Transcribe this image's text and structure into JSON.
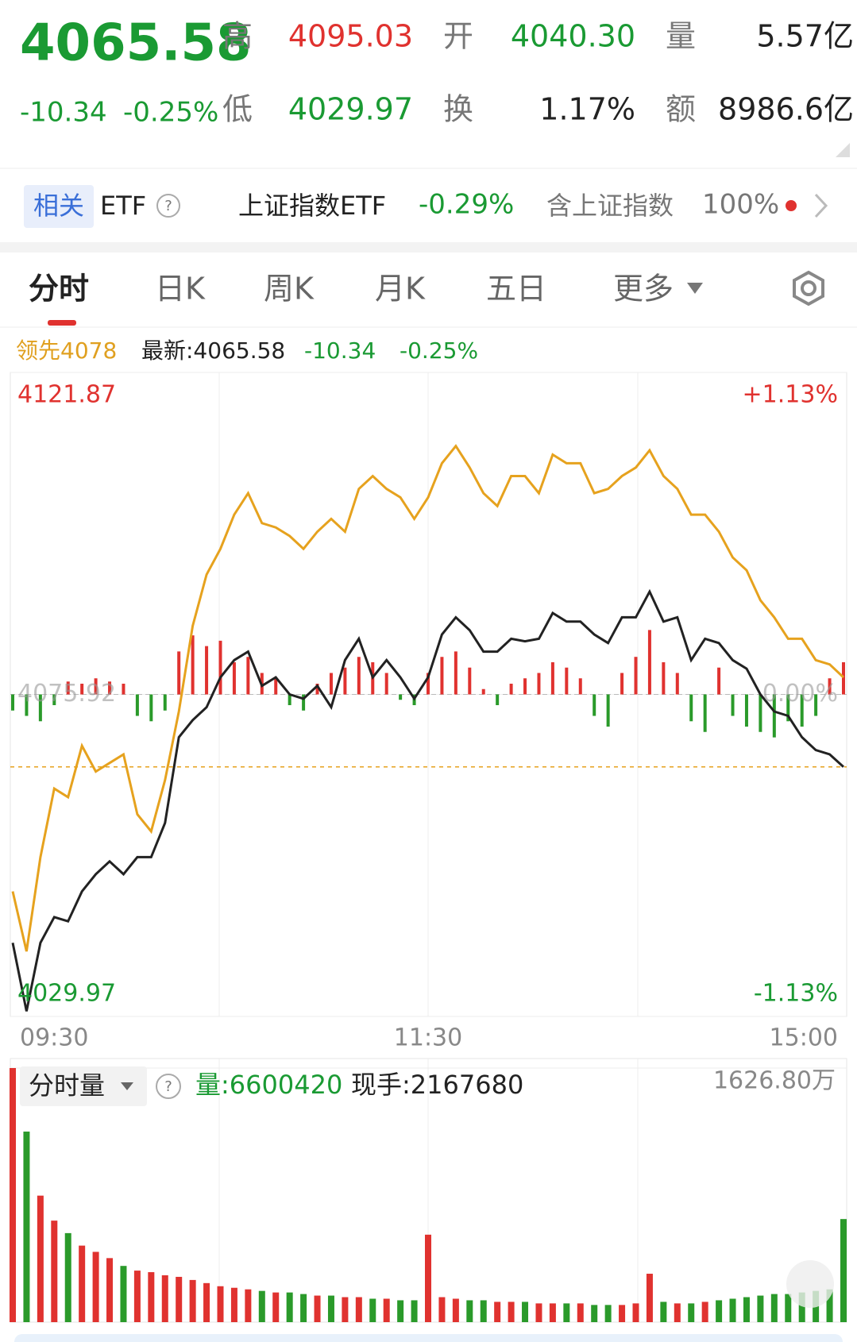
{
  "header": {
    "price": "4065.58",
    "change": "-10.34",
    "change_pct": "-0.25%",
    "stats": [
      {
        "label": "高",
        "value": "4095.03"
      },
      {
        "label": "开",
        "value": "4040.30"
      },
      {
        "label": "量",
        "value": "5.57亿"
      },
      {
        "label": "低",
        "value": "4029.97"
      },
      {
        "label": "换",
        "value": "1.17%"
      },
      {
        "label": "额",
        "value": "8986.6亿"
      }
    ]
  },
  "etf": {
    "tag": "相关",
    "label": "ETF",
    "name": "上证指数ETF",
    "change": "-0.29%",
    "holding_label": "含上证指数",
    "holding": "100%"
  },
  "tabs": [
    "分时",
    "日K",
    "周K",
    "月K",
    "五日",
    "更多"
  ],
  "chart_data": {
    "type": "line",
    "legend": {
      "lead": "领先4078",
      "latest": "最新:4065.58",
      "change": "-10.34",
      "change_pct": "-0.25%"
    },
    "categories": [
      "09:30",
      null,
      null,
      null,
      null,
      null,
      null,
      null,
      null,
      null,
      null,
      null,
      null,
      null,
      null,
      null,
      null,
      null,
      null,
      null,
      null,
      null,
      null,
      null,
      null,
      null,
      null,
      null,
      null,
      null,
      "11:30",
      null,
      null,
      null,
      null,
      null,
      null,
      null,
      null,
      null,
      null,
      null,
      null,
      null,
      null,
      null,
      null,
      null,
      null,
      null,
      null,
      null,
      null,
      null,
      null,
      null,
      null,
      null,
      null,
      null,
      "15:00"
    ],
    "ylim": [
      4029.97,
      4121.87
    ],
    "yticks": [
      4029.97,
      4075.92,
      4121.87
    ],
    "y2lim": [
      -1.13,
      1.13
    ],
    "y2ticks": [
      {
        "value": -1.13,
        "label": "-1.13%"
      },
      {
        "value": 0,
        "label": "0.00%"
      },
      {
        "value": 1.13,
        "label": "+1.13%"
      }
    ],
    "grid": true,
    "up_color": "#e0322f",
    "down_color": "#2a9a2a",
    "series": [
      {
        "color": "#e6a21e",
        "values": [
          4047.81,
          4039.26,
          4052.7,
          4062.48,
          4061.26,
          4068.59,
          4064.92,
          4066.14,
          4067.37,
          4058.81,
          4056.37,
          4063.7,
          4073.48,
          4085.7,
          4093.03,
          4096.69,
          4101.58,
          4104.64,
          4100.36,
          4099.75,
          4098.53,
          4096.69,
          4099.14,
          4100.97,
          4099.14,
          4105.25,
          4107.08,
          4105.25,
          4104.03,
          4100.97,
          4104.03,
          4108.91,
          4111.36,
          4108.3,
          4104.64,
          4102.8,
          4107.08,
          4107.08,
          4104.64,
          4110.14,
          4108.91,
          4108.91,
          4104.64,
          4105.25,
          4107.08,
          4108.3,
          4110.75,
          4107.08,
          4105.25,
          4101.58,
          4101.58,
          4099.14,
          4095.47,
          4093.64,
          4089.36,
          4086.92,
          4083.86,
          4083.86,
          4080.81,
          4080.2,
          4078.36
        ]
      },
      {
        "color": "#222222",
        "values": [
          4040.48,
          4030.71,
          4040.48,
          4044.15,
          4043.54,
          4047.81,
          4050.26,
          4052.09,
          4050.26,
          4052.7,
          4052.7,
          4057.59,
          4069.81,
          4072.25,
          4074.09,
          4078.36,
          4080.81,
          4082.03,
          4077.14,
          4078.36,
          4075.92,
          4075.31,
          4077.14,
          4074.09,
          4080.81,
          4083.86,
          4078.36,
          4080.81,
          4078.36,
          4075.31,
          4078.36,
          4084.47,
          4086.92,
          4085.09,
          4082.03,
          4082.03,
          4083.86,
          4083.5,
          4083.86,
          4087.53,
          4086.31,
          4086.31,
          4084.47,
          4083.25,
          4086.92,
          4086.92,
          4090.58,
          4086.31,
          4086.92,
          4080.81,
          4083.86,
          4083.25,
          4080.81,
          4079.59,
          4075.92,
          4073.48,
          4072.86,
          4069.81,
          4067.98,
          4067.37,
          4065.58
        ]
      }
    ],
    "bars": {
      "ylim": [
        -300,
        300
      ],
      "values": [
        -15,
        -20,
        -25,
        -10,
        12,
        10,
        15,
        12,
        10,
        -20,
        -25,
        -15,
        40,
        55,
        45,
        50,
        30,
        35,
        20,
        15,
        -10,
        -15,
        10,
        20,
        25,
        35,
        30,
        20,
        -5,
        -10,
        20,
        35,
        40,
        25,
        5,
        -10,
        10,
        15,
        20,
        30,
        25,
        15,
        -20,
        -30,
        20,
        35,
        60,
        30,
        20,
        -25,
        -35,
        25,
        -20,
        -30,
        -35,
        -40,
        -25,
        -30,
        -20,
        15,
        30
      ]
    },
    "volume": {
      "title": "分时量",
      "volume_label": "量:6600420",
      "last_label": "现手:2167680",
      "ylim": [
        0,
        16268000
      ],
      "yticks": [
        {
          "value": 16268000,
          "label": "1626.80万"
        }
      ],
      "values": [
        16268000,
        12200000,
        8100000,
        6500000,
        5700000,
        4900000,
        4500000,
        4100000,
        3600000,
        3300000,
        3200000,
        3000000,
        2900000,
        2700000,
        2500000,
        2300000,
        2200000,
        2100000,
        2000000,
        1900000,
        1900000,
        1800000,
        1700000,
        1700000,
        1600000,
        1600000,
        1500000,
        1500000,
        1400000,
        1400000,
        5600000,
        1600000,
        1500000,
        1400000,
        1400000,
        1300000,
        1300000,
        1300000,
        1200000,
        1200000,
        1200000,
        1200000,
        1100000,
        1100000,
        1100000,
        1200000,
        3100000,
        1300000,
        1200000,
        1200000,
        1300000,
        1400000,
        1500000,
        1600000,
        1700000,
        1800000,
        1800000,
        1900000,
        2000000,
        2100000,
        6600420
      ]
    }
  }
}
